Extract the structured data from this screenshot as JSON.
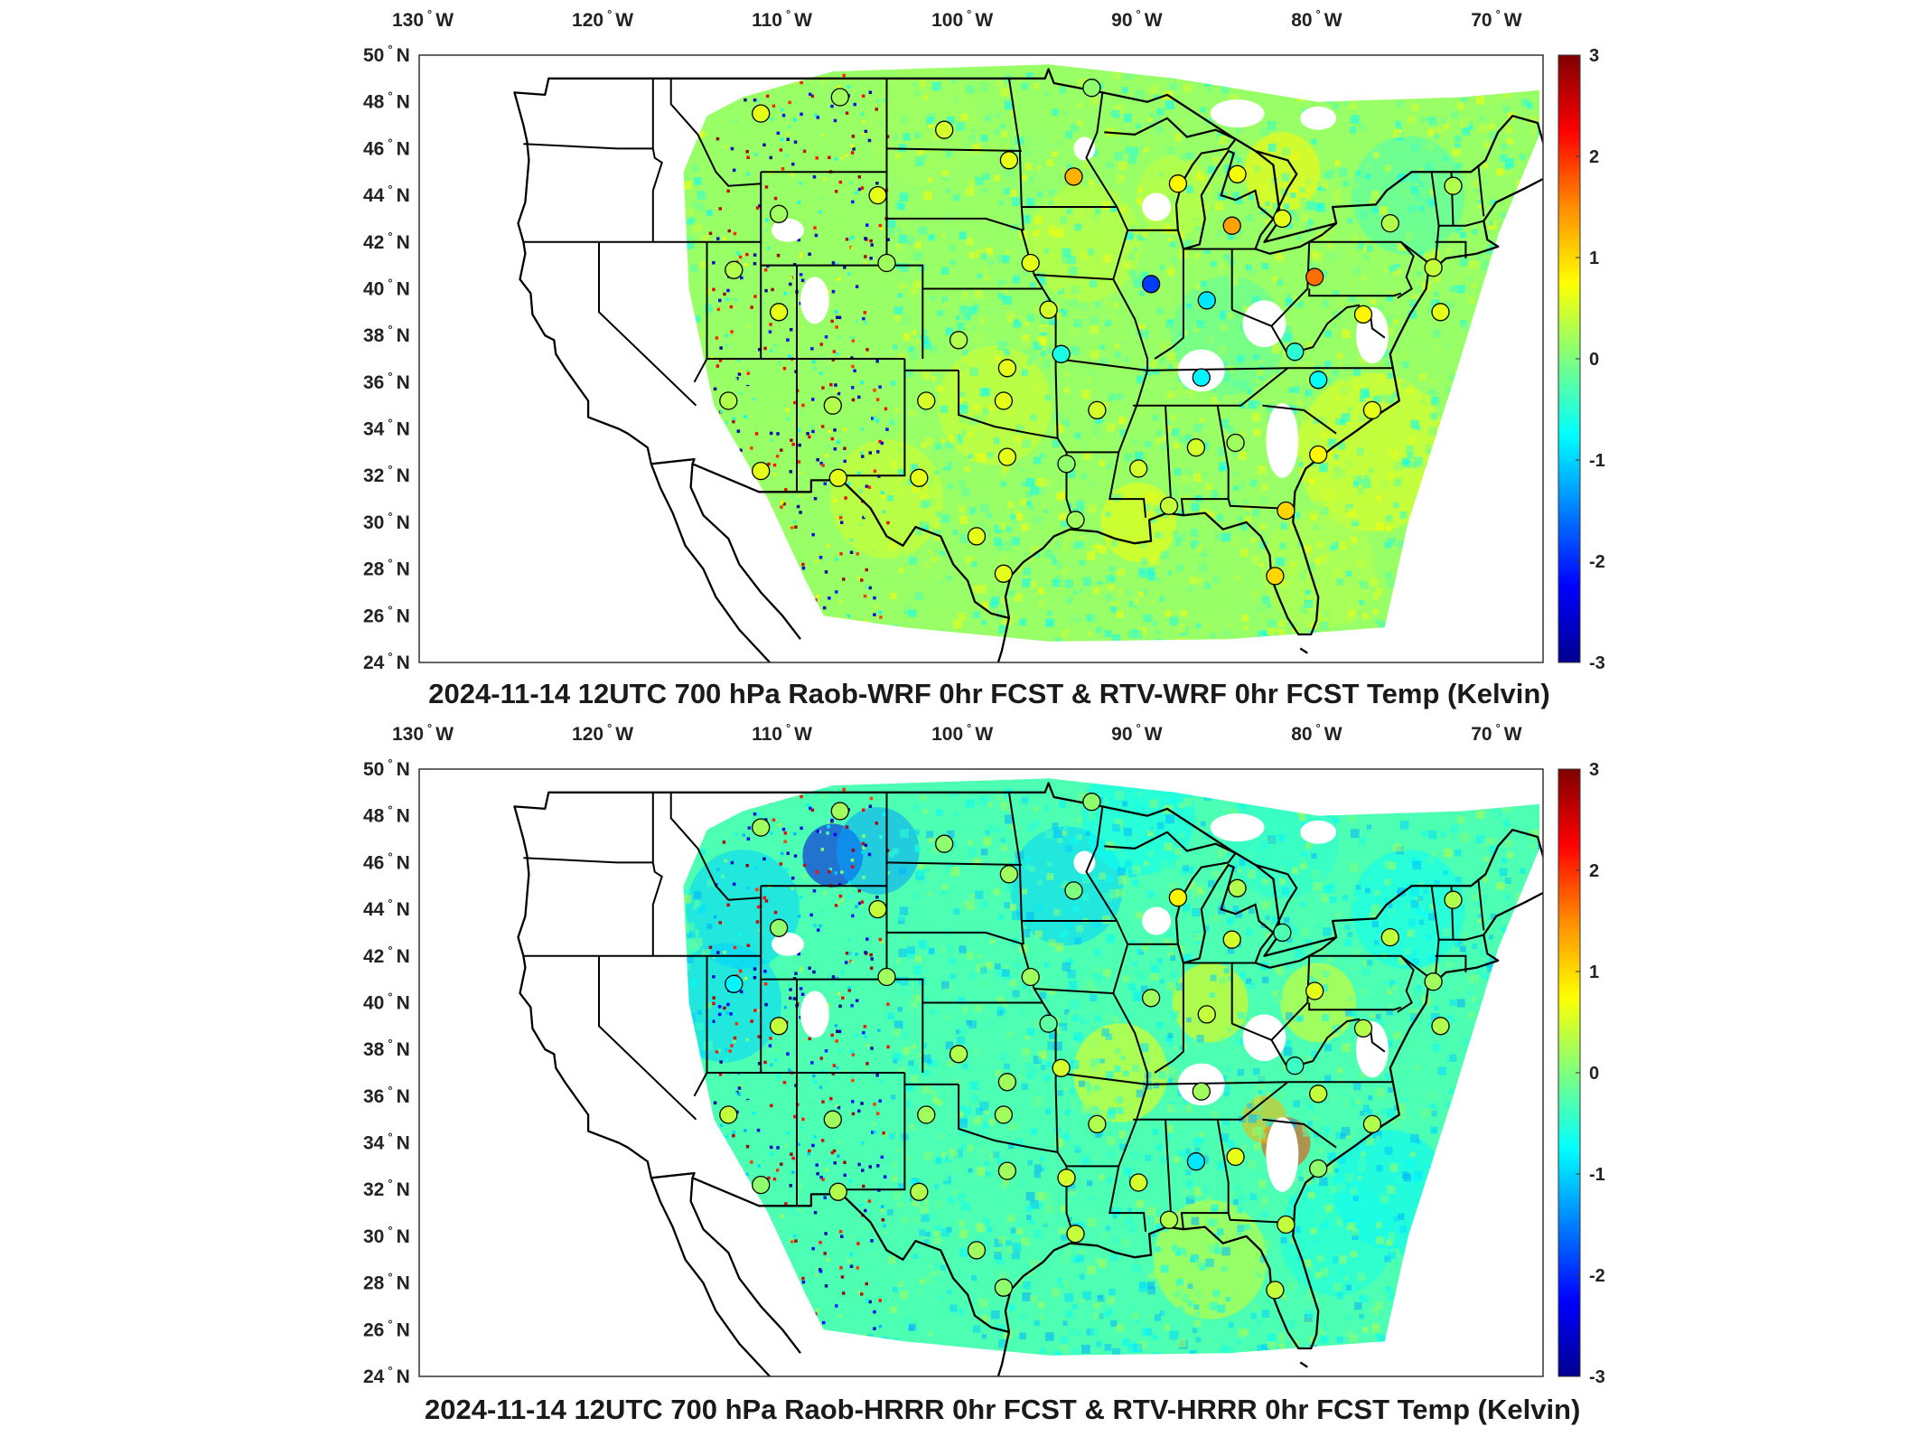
{
  "colorbar": {
    "ticks": [
      "3",
      "2",
      "1",
      "0",
      "-1",
      "-2",
      "-3"
    ],
    "colors": [
      "#7f0000",
      "#ff0000",
      "#ff8c00",
      "#ffff00",
      "#7fff7f",
      "#00ffff",
      "#007fff",
      "#0000ff",
      "#00008f"
    ]
  },
  "axes": {
    "lon_labels": [
      "130",
      "120",
      "110",
      "100",
      "90",
      "80",
      "70"
    ],
    "lon_suffix": "W",
    "lat_labels": [
      "50",
      "48",
      "46",
      "44",
      "42",
      "40",
      "38",
      "36",
      "34",
      "32",
      "30",
      "28",
      "26",
      "24"
    ],
    "lat_suffix": "N",
    "degree_symbol": "°"
  },
  "panels": [
    {
      "title": "2024-11-14 12UTC 700 hPa Raob-WRF 0hr FCST & RTV-WRF 0hr FCST Temp (Kelvin)",
      "field_bias": 0.0,
      "stations": [
        {
          "lon": -111.0,
          "lat": 47.5,
          "value": 0.6
        },
        {
          "lon": -106.6,
          "lat": 48.2,
          "value": 0.2
        },
        {
          "lon": -100.8,
          "lat": 46.8,
          "value": 0.5
        },
        {
          "lon": -97.2,
          "lat": 45.5,
          "value": 0.6
        },
        {
          "lon": -93.6,
          "lat": 44.8,
          "value": 1.2
        },
        {
          "lon": -87.8,
          "lat": 44.5,
          "value": 0.8
        },
        {
          "lon": -84.5,
          "lat": 44.9,
          "value": 0.7
        },
        {
          "lon": -84.8,
          "lat": 42.7,
          "value": 1.3
        },
        {
          "lon": -82.0,
          "lat": 43.0,
          "value": 0.6
        },
        {
          "lon": -80.2,
          "lat": 40.5,
          "value": 1.6
        },
        {
          "lon": -89.3,
          "lat": 40.2,
          "value": -1.9
        },
        {
          "lon": -86.2,
          "lat": 39.5,
          "value": -0.9
        },
        {
          "lon": -77.5,
          "lat": 38.9,
          "value": 0.8
        },
        {
          "lon": -73.6,
          "lat": 40.9,
          "value": 0.4
        },
        {
          "lon": -72.5,
          "lat": 44.4,
          "value": 0.3
        },
        {
          "lon": -76.0,
          "lat": 42.8,
          "value": 0.3
        },
        {
          "lon": -110.0,
          "lat": 43.2,
          "value": 0.2
        },
        {
          "lon": -104.5,
          "lat": 44.0,
          "value": 0.6
        },
        {
          "lon": -112.5,
          "lat": 40.8,
          "value": 0.3
        },
        {
          "lon": -110.0,
          "lat": 39.0,
          "value": 0.6
        },
        {
          "lon": -104.0,
          "lat": 41.1,
          "value": 0.2
        },
        {
          "lon": -100.0,
          "lat": 37.8,
          "value": 0.3
        },
        {
          "lon": -96.0,
          "lat": 41.1,
          "value": 0.6
        },
        {
          "lon": -95.0,
          "lat": 39.1,
          "value": 0.5
        },
        {
          "lon": -94.3,
          "lat": 37.2,
          "value": -0.6
        },
        {
          "lon": -97.3,
          "lat": 36.6,
          "value": 0.6
        },
        {
          "lon": -97.5,
          "lat": 35.2,
          "value": 0.6
        },
        {
          "lon": -101.8,
          "lat": 35.2,
          "value": 0.5
        },
        {
          "lon": -92.3,
          "lat": 34.8,
          "value": 0.5
        },
        {
          "lon": -97.3,
          "lat": 32.8,
          "value": 0.6
        },
        {
          "lon": -102.2,
          "lat": 31.9,
          "value": 0.6
        },
        {
          "lon": -106.7,
          "lat": 31.9,
          "value": 0.6
        },
        {
          "lon": -112.8,
          "lat": 35.2,
          "value": 0.3
        },
        {
          "lon": -111.0,
          "lat": 32.2,
          "value": 0.6
        },
        {
          "lon": -107.0,
          "lat": 35.0,
          "value": 0.3
        },
        {
          "lon": -99.0,
          "lat": 29.4,
          "value": 0.6
        },
        {
          "lon": -97.5,
          "lat": 27.8,
          "value": 0.6
        },
        {
          "lon": -93.5,
          "lat": 30.1,
          "value": 0.2
        },
        {
          "lon": -94.0,
          "lat": 32.5,
          "value": 0.1
        },
        {
          "lon": -90.0,
          "lat": 32.3,
          "value": 0.5
        },
        {
          "lon": -86.8,
          "lat": 33.2,
          "value": 0.5
        },
        {
          "lon": -84.6,
          "lat": 33.4,
          "value": 0.2
        },
        {
          "lon": -86.5,
          "lat": 36.2,
          "value": -0.8
        },
        {
          "lon": -81.3,
          "lat": 37.3,
          "value": -0.5
        },
        {
          "lon": -80.0,
          "lat": 36.1,
          "value": -0.7
        },
        {
          "lon": -77.0,
          "lat": 34.8,
          "value": 0.6
        },
        {
          "lon": -80.0,
          "lat": 32.9,
          "value": 0.8
        },
        {
          "lon": -81.8,
          "lat": 30.5,
          "value": 1.0
        },
        {
          "lon": -82.4,
          "lat": 27.7,
          "value": 1.0
        },
        {
          "lon": -88.3,
          "lat": 30.7,
          "value": 0.4
        },
        {
          "lon": -92.6,
          "lat": 48.6,
          "value": 0.1
        },
        {
          "lon": -73.2,
          "lat": 39.0,
          "value": 0.6
        }
      ]
    },
    {
      "title": "2024-11-14 12UTC 700 hPa Raob-HRRR 0hr FCST & RTV-HRRR 0hr FCST Temp (Kelvin)",
      "field_bias": -0.45,
      "stations": [
        {
          "lon": -111.0,
          "lat": 47.5,
          "value": 0.2
        },
        {
          "lon": -106.6,
          "lat": 48.2,
          "value": 0.2
        },
        {
          "lon": -100.8,
          "lat": 46.8,
          "value": 0.1
        },
        {
          "lon": -97.2,
          "lat": 45.5,
          "value": 0.2
        },
        {
          "lon": -93.6,
          "lat": 44.8,
          "value": 0.0
        },
        {
          "lon": -87.8,
          "lat": 44.5,
          "value": 0.8
        },
        {
          "lon": -84.5,
          "lat": 44.9,
          "value": 0.3
        },
        {
          "lon": -84.8,
          "lat": 42.7,
          "value": 0.5
        },
        {
          "lon": -82.0,
          "lat": 43.0,
          "value": -0.3
        },
        {
          "lon": -80.2,
          "lat": 40.5,
          "value": 0.6
        },
        {
          "lon": -89.3,
          "lat": 40.2,
          "value": 0.2
        },
        {
          "lon": -86.2,
          "lat": 39.5,
          "value": 0.4
        },
        {
          "lon": -77.5,
          "lat": 38.9,
          "value": 0.3
        },
        {
          "lon": -73.6,
          "lat": 40.9,
          "value": 0.2
        },
        {
          "lon": -72.5,
          "lat": 44.4,
          "value": 0.3
        },
        {
          "lon": -76.0,
          "lat": 42.8,
          "value": 0.4
        },
        {
          "lon": -110.0,
          "lat": 43.2,
          "value": 0.1
        },
        {
          "lon": -104.5,
          "lat": 44.0,
          "value": 0.4
        },
        {
          "lon": -112.5,
          "lat": 40.8,
          "value": -0.8
        },
        {
          "lon": -110.0,
          "lat": 39.0,
          "value": 0.4
        },
        {
          "lon": -104.0,
          "lat": 41.1,
          "value": 0.2
        },
        {
          "lon": -100.0,
          "lat": 37.8,
          "value": 0.3
        },
        {
          "lon": -96.0,
          "lat": 41.1,
          "value": 0.2
        },
        {
          "lon": -95.0,
          "lat": 39.1,
          "value": -0.2
        },
        {
          "lon": -94.3,
          "lat": 37.2,
          "value": 0.5
        },
        {
          "lon": -97.3,
          "lat": 36.6,
          "value": 0.2
        },
        {
          "lon": -97.5,
          "lat": 35.2,
          "value": 0.2
        },
        {
          "lon": -101.8,
          "lat": 35.2,
          "value": 0.2
        },
        {
          "lon": -92.3,
          "lat": 34.8,
          "value": 0.3
        },
        {
          "lon": -97.3,
          "lat": 32.8,
          "value": 0.2
        },
        {
          "lon": -102.2,
          "lat": 31.9,
          "value": 0.3
        },
        {
          "lon": -106.7,
          "lat": 31.9,
          "value": 0.3
        },
        {
          "lon": -112.8,
          "lat": 35.2,
          "value": 0.4
        },
        {
          "lon": -111.0,
          "lat": 32.2,
          "value": 0.1
        },
        {
          "lon": -107.0,
          "lat": 35.0,
          "value": 0.2
        },
        {
          "lon": -99.0,
          "lat": 29.4,
          "value": 0.2
        },
        {
          "lon": -97.5,
          "lat": 27.8,
          "value": 0.1
        },
        {
          "lon": -93.5,
          "lat": 30.1,
          "value": 0.4
        },
        {
          "lon": -94.0,
          "lat": 32.5,
          "value": 0.5
        },
        {
          "lon": -90.0,
          "lat": 32.3,
          "value": 0.5
        },
        {
          "lon": -86.8,
          "lat": 33.2,
          "value": -0.9
        },
        {
          "lon": -84.6,
          "lat": 33.4,
          "value": 0.6
        },
        {
          "lon": -86.5,
          "lat": 36.2,
          "value": 0.2
        },
        {
          "lon": -81.3,
          "lat": 37.3,
          "value": -0.4
        },
        {
          "lon": -80.0,
          "lat": 36.1,
          "value": 0.4
        },
        {
          "lon": -77.0,
          "lat": 34.8,
          "value": 0.3
        },
        {
          "lon": -80.0,
          "lat": 32.9,
          "value": 0.1
        },
        {
          "lon": -81.8,
          "lat": 30.5,
          "value": 0.4
        },
        {
          "lon": -82.4,
          "lat": 27.7,
          "value": 0.4
        },
        {
          "lon": -88.3,
          "lat": 30.7,
          "value": 0.3
        },
        {
          "lon": -92.6,
          "lat": 48.6,
          "value": 0.1
        },
        {
          "lon": -73.2,
          "lat": 39.0,
          "value": 0.3
        }
      ]
    }
  ]
}
